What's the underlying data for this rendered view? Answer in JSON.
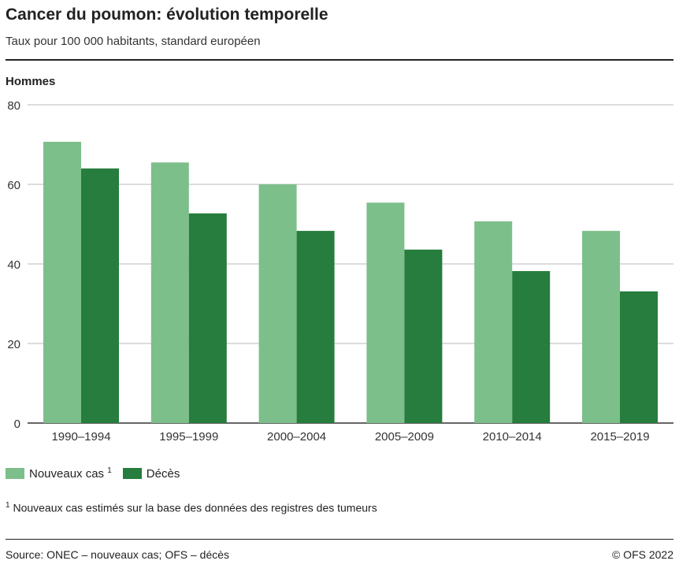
{
  "title": "Cancer du poumon: évolution temporelle",
  "subtitle": "Taux pour 100 000 habitants, standard européen",
  "panel": "Hommes",
  "footnote_mark": "1",
  "footnote": "Nouveaux cas estimés sur la base des données des registres des tumeurs",
  "source": "Source: ONEC – nouveaux cas; OFS – décès",
  "copyright": "© OFS 2022",
  "chart_data": {
    "type": "bar",
    "title": "Cancer du poumon: évolution temporelle",
    "subtitle": "Taux pour 100 000 habitants, standard européen",
    "categories": [
      "1990–1994",
      "1995–1999",
      "2000–2004",
      "2005–2009",
      "2010–2014",
      "2015–2019"
    ],
    "series": [
      {
        "name": "Nouveaux cas",
        "sup": "1",
        "color": "#7dbf8a",
        "values": [
          70.7,
          65.5,
          60.0,
          55.4,
          50.7,
          48.3
        ]
      },
      {
        "name": "Décès",
        "color": "#267d3d",
        "values": [
          64.0,
          52.7,
          48.3,
          43.6,
          38.2,
          33.1
        ]
      }
    ],
    "ylim": [
      0,
      80
    ],
    "yticks": [
      0,
      20,
      40,
      60,
      80
    ],
    "grid": true,
    "legend": "bottom-left"
  }
}
